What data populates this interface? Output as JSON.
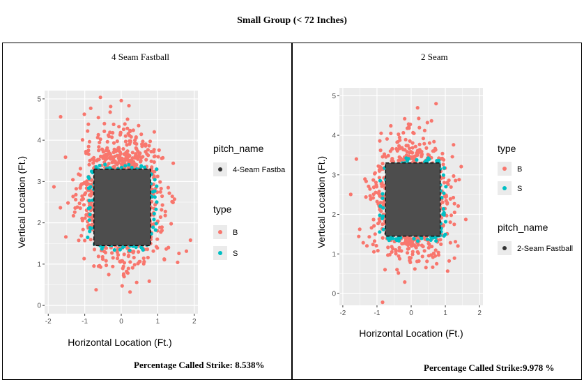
{
  "figure_title": "Small Group (< 72 Inches)",
  "colors": {
    "ball": "#F8766D",
    "strike": "#00BFC4",
    "zone": "#4D4D4D",
    "panel_bg": "#EBEBEB",
    "grid": "#FFFFFF"
  },
  "chart_data": [
    {
      "type": "scatter",
      "title": "4 Seam Fastball",
      "xlabel": "Horizontal Location (Ft.)",
      "ylabel": "Vertical Location (Ft.)",
      "xlim": [
        -2.1,
        2.1
      ],
      "ylim": [
        -0.2,
        5.2
      ],
      "x_ticks": [
        -2,
        -1,
        0,
        1,
        2
      ],
      "y_ticks": [
        0,
        1,
        2,
        3,
        4,
        5
      ],
      "strike_zone": {
        "x": [
          -0.75,
          0.8
        ],
        "y": [
          1.45,
          3.3
        ]
      },
      "legend": [
        {
          "title": "pitch_name",
          "items": [
            {
              "label": "4-Seam Fastba",
              "color": "#333333"
            }
          ]
        },
        {
          "title": "type",
          "items": [
            {
              "label": "B",
              "color": "#F8766D"
            },
            {
              "label": "S",
              "color": "#00BFC4"
            }
          ]
        }
      ],
      "series": [
        {
          "name": "B",
          "type_code": "B",
          "count": 1400,
          "center": [
            0,
            2.6
          ],
          "spread": [
            0.85,
            1.2
          ]
        },
        {
          "name": "S",
          "type_code": "S",
          "count": 140,
          "center": [
            0,
            2.4
          ],
          "spread": [
            0.9,
            0.95
          ]
        }
      ],
      "annotation": "Percentage Called Strike: 8.538%"
    },
    {
      "type": "scatter",
      "title": "2 Seam",
      "xlabel": "Horizontal Location (Ft.)",
      "ylabel": "Vertical Location (Ft.)",
      "xlim": [
        -2.1,
        2.1
      ],
      "ylim": [
        -0.3,
        5.2
      ],
      "x_ticks": [
        -2,
        -1,
        0,
        1,
        2
      ],
      "y_ticks": [
        0,
        1,
        2,
        3,
        4,
        5
      ],
      "strike_zone": {
        "x": [
          -0.75,
          0.85
        ],
        "y": [
          1.45,
          3.3
        ]
      },
      "legend": [
        {
          "title": "type",
          "items": [
            {
              "label": "B",
              "color": "#F8766D"
            },
            {
              "label": "S",
              "color": "#00BFC4"
            }
          ]
        },
        {
          "title": "pitch_name",
          "items": [
            {
              "label": "2-Seam Fastball",
              "color": "#333333"
            }
          ]
        }
      ],
      "series": [
        {
          "name": "B",
          "type_code": "B",
          "count": 1100,
          "center": [
            0,
            2.4
          ],
          "spread": [
            0.85,
            1.2
          ]
        },
        {
          "name": "S",
          "type_code": "S",
          "count": 120,
          "center": [
            0,
            2.4
          ],
          "spread": [
            0.9,
            0.95
          ]
        }
      ],
      "annotation": "Percentage Called Strike:9.978 %"
    }
  ]
}
